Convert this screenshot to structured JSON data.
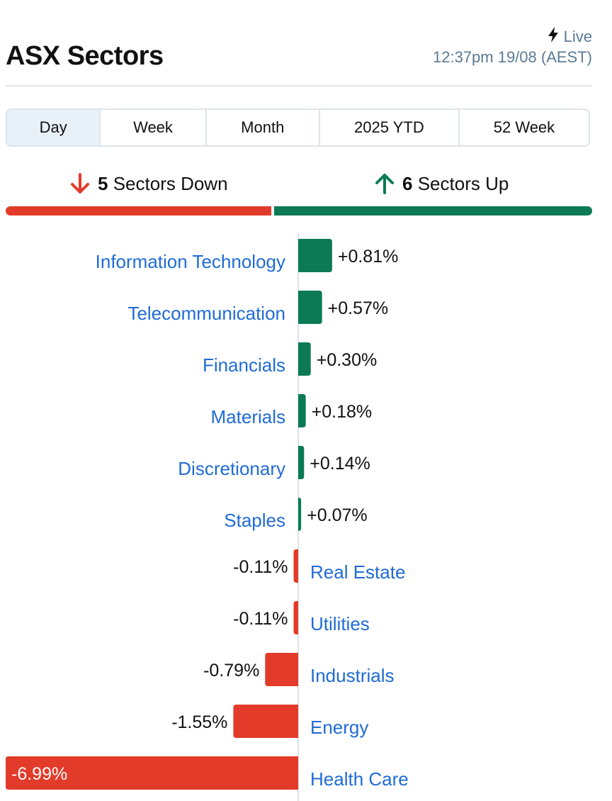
{
  "header": {
    "title": "ASX Sectors",
    "live_label": "Live",
    "live_icon": "lightning-bolt-icon",
    "timestamp": "12:37pm 19/08 (AEST)"
  },
  "tabs": [
    {
      "label": "Day",
      "active": true
    },
    {
      "label": "Week",
      "active": false
    },
    {
      "label": "Month",
      "active": false
    },
    {
      "label": "2025 YTD",
      "active": false
    },
    {
      "label": "52 Week",
      "active": false
    }
  ],
  "summary": {
    "down_count": "5",
    "down_label": "Sectors Down",
    "up_count": "6",
    "up_label": "Sectors Up"
  },
  "colors": {
    "up": "#0b7a55",
    "down": "#e23b2a",
    "label": "#1f6bd6",
    "axis": "#dde4ea"
  },
  "chart_data": {
    "type": "bar",
    "orientation": "horizontal",
    "unit": "%",
    "categories": [
      "Information Technology",
      "Telecommunication",
      "Financials",
      "Materials",
      "Discretionary",
      "Staples",
      "Real Estate",
      "Utilities",
      "Industrials",
      "Energy",
      "Health Care"
    ],
    "values": [
      0.81,
      0.57,
      0.3,
      0.18,
      0.14,
      0.07,
      -0.11,
      -0.11,
      -0.79,
      -1.55,
      -6.99
    ],
    "value_labels": [
      "+0.81%",
      "+0.57%",
      "+0.30%",
      "+0.18%",
      "+0.14%",
      "+0.07%",
      "-0.11%",
      "-0.11%",
      "-0.79%",
      "-1.55%",
      "-6.99%"
    ]
  }
}
